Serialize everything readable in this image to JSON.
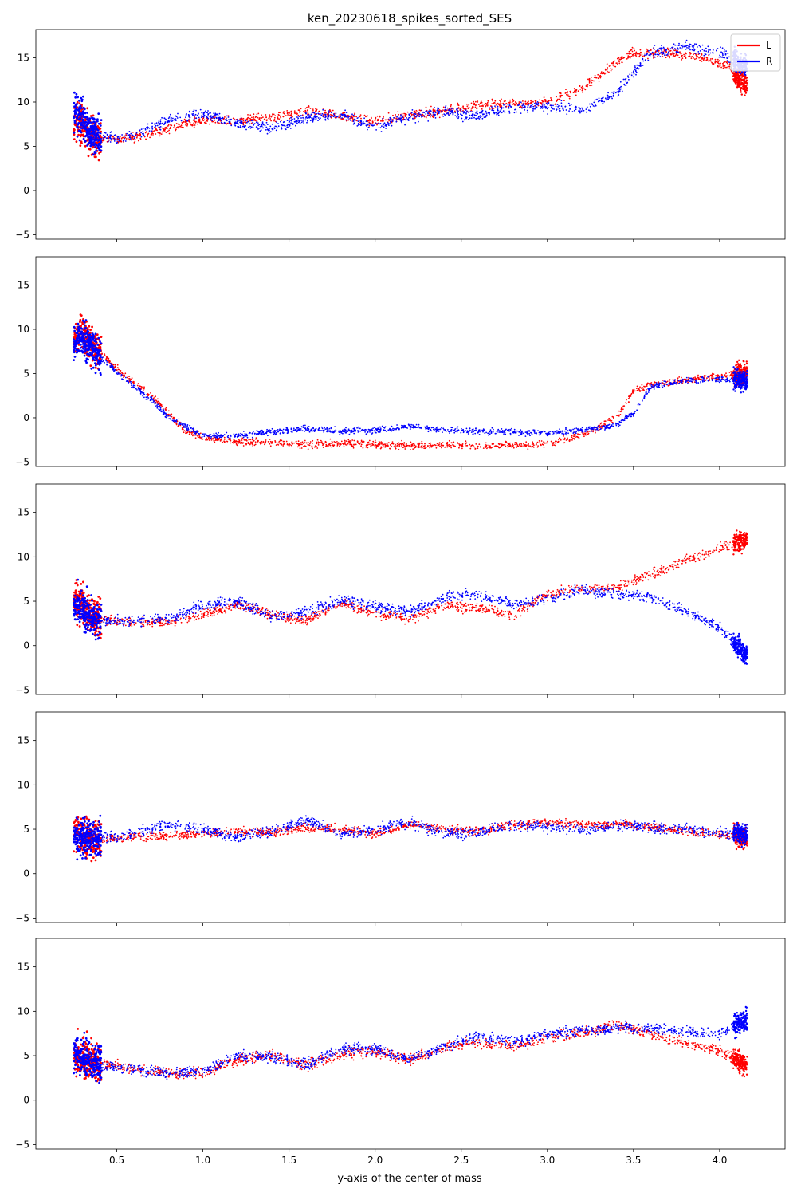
{
  "chart_data": {
    "type": "scatter",
    "title": "ken_20230618_spikes_sorted_SES",
    "xlabel": "y-axis of the center of mass",
    "xlim": [
      0.03,
      4.38
    ],
    "ylim": [
      -5.5,
      18.2
    ],
    "xticks": [
      0.5,
      1.0,
      1.5,
      2.0,
      2.5,
      3.0,
      3.5,
      4.0
    ],
    "xtick_labels": [
      "0.5",
      "1.0",
      "1.5",
      "2.0",
      "2.5",
      "3.0",
      "3.5",
      "4.0"
    ],
    "yticks": [
      -5,
      0,
      5,
      10,
      15
    ],
    "ytick_labels": [
      "−5",
      "0",
      "5",
      "10",
      "15"
    ],
    "shared_x": true,
    "shared_y": true,
    "legend": {
      "placement": "top-right",
      "panel": 0,
      "entries": [
        {
          "label": "L",
          "color": "#ff0000"
        },
        {
          "label": "R",
          "color": "#0000ff"
        }
      ]
    },
    "colors": {
      "L": "#ff0000",
      "R": "#0000ff"
    },
    "panels": [
      {
        "L": [
          [
            0.26,
            8.0
          ],
          [
            0.3,
            7.5
          ],
          [
            0.35,
            6.2
          ],
          [
            0.4,
            5.8
          ],
          [
            0.5,
            5.8
          ],
          [
            0.6,
            6.0
          ],
          [
            0.8,
            7.0
          ],
          [
            1.0,
            8.0
          ],
          [
            1.2,
            7.8
          ],
          [
            1.4,
            8.3
          ],
          [
            1.6,
            9.0
          ],
          [
            1.8,
            8.4
          ],
          [
            2.0,
            7.8
          ],
          [
            2.2,
            8.5
          ],
          [
            2.4,
            9.0
          ],
          [
            2.6,
            9.6
          ],
          [
            2.8,
            9.8
          ],
          [
            3.0,
            10.0
          ],
          [
            3.2,
            11.5
          ],
          [
            3.4,
            14.5
          ],
          [
            3.5,
            15.6
          ],
          [
            3.7,
            15.6
          ],
          [
            3.9,
            15.0
          ],
          [
            4.05,
            14.0
          ],
          [
            4.15,
            12.0
          ]
        ],
        "R": [
          [
            0.26,
            8.5
          ],
          [
            0.3,
            8.0
          ],
          [
            0.35,
            6.5
          ],
          [
            0.4,
            6.0
          ],
          [
            0.5,
            5.8
          ],
          [
            0.6,
            6.2
          ],
          [
            0.8,
            8.0
          ],
          [
            1.0,
            8.7
          ],
          [
            1.2,
            7.6
          ],
          [
            1.4,
            7.0
          ],
          [
            1.6,
            8.2
          ],
          [
            1.8,
            8.6
          ],
          [
            2.0,
            7.2
          ],
          [
            2.2,
            8.3
          ],
          [
            2.4,
            8.9
          ],
          [
            2.6,
            8.4
          ],
          [
            2.8,
            9.5
          ],
          [
            3.0,
            9.5
          ],
          [
            3.2,
            9.2
          ],
          [
            3.4,
            11.0
          ],
          [
            3.6,
            15.6
          ],
          [
            3.8,
            16.2
          ],
          [
            3.95,
            15.8
          ],
          [
            4.05,
            15.2
          ],
          [
            4.15,
            14.0
          ]
        ],
        "spread_L": 0.8,
        "spread_R": 0.9
      },
      {
        "L": [
          [
            0.26,
            9.0
          ],
          [
            0.3,
            9.5
          ],
          [
            0.35,
            8.5
          ],
          [
            0.4,
            7.5
          ],
          [
            0.5,
            5.5
          ],
          [
            0.6,
            4.0
          ],
          [
            0.7,
            2.5
          ],
          [
            0.8,
            0.5
          ],
          [
            0.9,
            -1.5
          ],
          [
            1.0,
            -2.2
          ],
          [
            1.2,
            -2.7
          ],
          [
            1.4,
            -2.8
          ],
          [
            1.6,
            -3.0
          ],
          [
            1.8,
            -2.8
          ],
          [
            2.0,
            -3.0
          ],
          [
            2.2,
            -3.2
          ],
          [
            2.4,
            -3.0
          ],
          [
            2.6,
            -3.2
          ],
          [
            2.8,
            -3.1
          ],
          [
            3.0,
            -3.0
          ],
          [
            3.2,
            -2.0
          ],
          [
            3.4,
            0.0
          ],
          [
            3.5,
            3.0
          ],
          [
            3.6,
            3.8
          ],
          [
            3.8,
            4.3
          ],
          [
            4.0,
            4.7
          ],
          [
            4.15,
            5.0
          ]
        ],
        "R": [
          [
            0.26,
            8.5
          ],
          [
            0.3,
            9.0
          ],
          [
            0.35,
            8.2
          ],
          [
            0.4,
            7.0
          ],
          [
            0.5,
            5.2
          ],
          [
            0.6,
            3.5
          ],
          [
            0.7,
            2.0
          ],
          [
            0.8,
            0.0
          ],
          [
            0.9,
            -1.0
          ],
          [
            1.0,
            -2.0
          ],
          [
            1.2,
            -2.0
          ],
          [
            1.4,
            -1.6
          ],
          [
            1.6,
            -1.2
          ],
          [
            1.8,
            -1.5
          ],
          [
            2.0,
            -1.4
          ],
          [
            2.2,
            -1.0
          ],
          [
            2.4,
            -1.4
          ],
          [
            2.6,
            -1.5
          ],
          [
            2.8,
            -1.6
          ],
          [
            3.0,
            -1.7
          ],
          [
            3.2,
            -1.4
          ],
          [
            3.4,
            -0.8
          ],
          [
            3.5,
            0.5
          ],
          [
            3.6,
            3.5
          ],
          [
            3.8,
            4.2
          ],
          [
            4.0,
            4.4
          ],
          [
            4.15,
            4.2
          ]
        ],
        "spread_L": 0.6,
        "spread_R": 0.5
      },
      {
        "L": [
          [
            0.26,
            5.0
          ],
          [
            0.3,
            4.5
          ],
          [
            0.35,
            3.5
          ],
          [
            0.4,
            2.8
          ],
          [
            0.5,
            2.7
          ],
          [
            0.6,
            2.6
          ],
          [
            0.8,
            2.6
          ],
          [
            1.0,
            3.5
          ],
          [
            1.2,
            4.6
          ],
          [
            1.4,
            3.5
          ],
          [
            1.6,
            2.8
          ],
          [
            1.8,
            4.8
          ],
          [
            2.0,
            3.6
          ],
          [
            2.2,
            3.0
          ],
          [
            2.4,
            4.5
          ],
          [
            2.6,
            4.2
          ],
          [
            2.8,
            3.5
          ],
          [
            3.0,
            5.8
          ],
          [
            3.2,
            6.5
          ],
          [
            3.4,
            6.5
          ],
          [
            3.6,
            8.0
          ],
          [
            3.8,
            9.5
          ],
          [
            4.0,
            11.0
          ],
          [
            4.15,
            12.0
          ]
        ],
        "R": [
          [
            0.26,
            4.5
          ],
          [
            0.3,
            4.0
          ],
          [
            0.35,
            3.2
          ],
          [
            0.4,
            2.8
          ],
          [
            0.5,
            2.7
          ],
          [
            0.6,
            2.8
          ],
          [
            0.8,
            3.0
          ],
          [
            1.0,
            4.5
          ],
          [
            1.2,
            5.0
          ],
          [
            1.4,
            3.2
          ],
          [
            1.6,
            3.8
          ],
          [
            1.8,
            5.2
          ],
          [
            2.0,
            4.4
          ],
          [
            2.2,
            3.8
          ],
          [
            2.4,
            5.5
          ],
          [
            2.6,
            5.8
          ],
          [
            2.8,
            4.6
          ],
          [
            3.0,
            5.2
          ],
          [
            3.2,
            6.2
          ],
          [
            3.4,
            5.8
          ],
          [
            3.6,
            5.5
          ],
          [
            3.8,
            4.0
          ],
          [
            4.0,
            2.0
          ],
          [
            4.15,
            -1.0
          ]
        ],
        "spread_L": 0.8,
        "spread_R": 0.9
      },
      {
        "L": [
          [
            0.26,
            4.5
          ],
          [
            0.3,
            4.2
          ],
          [
            0.35,
            4.0
          ],
          [
            0.4,
            4.0
          ],
          [
            0.5,
            4.0
          ],
          [
            0.6,
            4.1
          ],
          [
            0.8,
            4.2
          ],
          [
            1.0,
            4.5
          ],
          [
            1.2,
            4.8
          ],
          [
            1.4,
            4.6
          ],
          [
            1.6,
            5.2
          ],
          [
            1.8,
            5.0
          ],
          [
            2.0,
            4.5
          ],
          [
            2.2,
            5.5
          ],
          [
            2.4,
            5.0
          ],
          [
            2.6,
            4.8
          ],
          [
            2.8,
            5.5
          ],
          [
            3.0,
            5.8
          ],
          [
            3.2,
            5.5
          ],
          [
            3.4,
            5.6
          ],
          [
            3.6,
            5.2
          ],
          [
            3.8,
            4.8
          ],
          [
            4.0,
            4.5
          ],
          [
            4.15,
            4.0
          ]
        ],
        "R": [
          [
            0.26,
            4.2
          ],
          [
            0.3,
            4.0
          ],
          [
            0.35,
            4.0
          ],
          [
            0.4,
            4.0
          ],
          [
            0.5,
            4.0
          ],
          [
            0.6,
            4.5
          ],
          [
            0.8,
            5.5
          ],
          [
            1.0,
            5.0
          ],
          [
            1.2,
            4.0
          ],
          [
            1.4,
            4.8
          ],
          [
            1.6,
            6.0
          ],
          [
            1.8,
            4.5
          ],
          [
            2.0,
            5.0
          ],
          [
            2.2,
            5.8
          ],
          [
            2.4,
            4.5
          ],
          [
            2.6,
            4.6
          ],
          [
            2.8,
            5.6
          ],
          [
            3.0,
            5.3
          ],
          [
            3.2,
            5.0
          ],
          [
            3.4,
            5.4
          ],
          [
            3.6,
            5.2
          ],
          [
            3.8,
            4.9
          ],
          [
            4.0,
            4.6
          ],
          [
            4.15,
            4.5
          ]
        ],
        "spread_L": 0.7,
        "spread_R": 0.9
      },
      {
        "L": [
          [
            0.26,
            5.0
          ],
          [
            0.3,
            4.8
          ],
          [
            0.35,
            4.5
          ],
          [
            0.4,
            4.2
          ],
          [
            0.5,
            3.8
          ],
          [
            0.6,
            3.5
          ],
          [
            0.8,
            3.0
          ],
          [
            1.0,
            3.0
          ],
          [
            1.2,
            4.5
          ],
          [
            1.4,
            5.0
          ],
          [
            1.6,
            4.0
          ],
          [
            1.8,
            5.2
          ],
          [
            2.0,
            5.5
          ],
          [
            2.2,
            4.5
          ],
          [
            2.4,
            6.0
          ],
          [
            2.6,
            6.5
          ],
          [
            2.8,
            6.0
          ],
          [
            3.0,
            7.0
          ],
          [
            3.2,
            7.5
          ],
          [
            3.4,
            8.5
          ],
          [
            3.6,
            7.5
          ],
          [
            3.8,
            6.5
          ],
          [
            4.0,
            5.5
          ],
          [
            4.15,
            4.0
          ]
        ],
        "R": [
          [
            0.26,
            5.2
          ],
          [
            0.3,
            4.8
          ],
          [
            0.35,
            4.4
          ],
          [
            0.4,
            4.0
          ],
          [
            0.5,
            3.7
          ],
          [
            0.6,
            3.4
          ],
          [
            0.8,
            3.0
          ],
          [
            1.0,
            3.2
          ],
          [
            1.2,
            5.0
          ],
          [
            1.4,
            4.8
          ],
          [
            1.6,
            4.0
          ],
          [
            1.8,
            5.8
          ],
          [
            2.0,
            5.8
          ],
          [
            2.2,
            4.5
          ],
          [
            2.4,
            6.0
          ],
          [
            2.6,
            7.2
          ],
          [
            2.8,
            6.5
          ],
          [
            3.0,
            7.5
          ],
          [
            3.2,
            7.8
          ],
          [
            3.4,
            8.2
          ],
          [
            3.6,
            8.0
          ],
          [
            3.8,
            7.8
          ],
          [
            4.0,
            7.5
          ],
          [
            4.15,
            9.0
          ]
        ],
        "spread_L": 0.9,
        "spread_R": 0.9
      }
    ]
  }
}
